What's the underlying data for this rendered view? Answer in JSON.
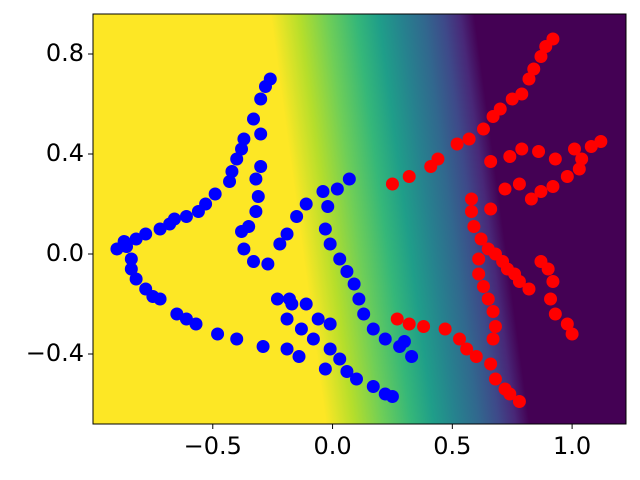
{
  "chart_data": {
    "type": "scatter",
    "xlim": [
      -1.0,
      1.225
    ],
    "ylim": [
      -0.68,
      0.96
    ],
    "xticks": [
      {
        "value": -0.5,
        "label": "−0.5"
      },
      {
        "value": 0.0,
        "label": "0.0"
      },
      0.5,
      {
        "value": 1.0,
        "label": "1.0"
      }
    ],
    "yticks": [
      {
        "value": -0.4,
        "label": "−0.4"
      },
      {
        "value": 0.0,
        "label": "0.0"
      },
      0.4,
      0.8
    ],
    "series": [
      {
        "color": "#0000ff",
        "x": [
          -0.26,
          -0.28,
          -0.3,
          -0.33,
          -0.3,
          -0.37,
          -0.38,
          -0.4,
          -0.42,
          -0.43,
          -0.49,
          -0.53,
          -0.56,
          -0.61,
          -0.66,
          -0.68,
          -0.72,
          -0.78,
          -0.82,
          -0.87,
          -0.9,
          -0.86,
          -0.84,
          -0.84,
          -0.82,
          -0.78,
          -0.75,
          -0.72,
          -0.65,
          -0.61,
          -0.57,
          -0.48,
          -0.4,
          -0.29,
          -0.35,
          -0.32,
          -0.31,
          -0.32,
          -0.3,
          -0.38,
          -0.37,
          -0.33,
          -0.27,
          -0.22,
          -0.19,
          -0.15,
          -0.11,
          -0.04,
          0.02,
          0.07,
          -0.02,
          -0.03,
          -0.01,
          0.03,
          0.06,
          0.09,
          0.11,
          0.13,
          0.17,
          0.22,
          0.28,
          0.33,
          0.3,
          -0.23,
          -0.17,
          -0.19,
          -0.13,
          -0.06,
          -0.01,
          -0.08,
          -0.01,
          0.03,
          0.06,
          0.1,
          0.17,
          0.22,
          0.25,
          -0.19,
          -0.14,
          -0.03,
          -0.18,
          -0.11
        ],
        "values": [
          0.7,
          0.67,
          0.62,
          0.54,
          0.48,
          0.46,
          0.42,
          0.38,
          0.33,
          0.29,
          0.24,
          0.2,
          0.17,
          0.15,
          0.14,
          0.12,
          0.1,
          0.08,
          0.06,
          0.05,
          0.02,
          0.03,
          -0.02,
          -0.06,
          -0.1,
          -0.14,
          -0.17,
          -0.18,
          -0.24,
          -0.26,
          -0.28,
          -0.32,
          -0.34,
          -0.37,
          0.11,
          0.17,
          0.23,
          0.3,
          0.35,
          0.09,
          0.02,
          -0.03,
          -0.04,
          0.04,
          0.08,
          0.15,
          0.2,
          0.25,
          0.26,
          0.3,
          0.19,
          0.1,
          0.04,
          -0.02,
          -0.07,
          -0.12,
          -0.18,
          -0.24,
          -0.3,
          -0.34,
          -0.37,
          -0.41,
          -0.35,
          -0.18,
          -0.2,
          -0.26,
          -0.3,
          -0.26,
          -0.28,
          -0.34,
          -0.38,
          -0.42,
          -0.47,
          -0.5,
          -0.53,
          -0.56,
          -0.57,
          -0.38,
          -0.41,
          -0.46,
          -0.18,
          -0.2
        ]
      },
      {
        "color": "#ff0000",
        "x": [
          0.92,
          0.89,
          0.87,
          0.84,
          0.82,
          0.79,
          0.75,
          0.7,
          0.67,
          0.63,
          0.57,
          0.52,
          0.25,
          0.32,
          0.41,
          0.44,
          0.66,
          0.74,
          0.79,
          0.86,
          0.93,
          1.01,
          1.08,
          1.12,
          1.04,
          1.03,
          0.98,
          0.92,
          0.87,
          0.83,
          0.78,
          0.72,
          0.66,
          0.58,
          0.58,
          0.59,
          0.62,
          0.65,
          0.68,
          0.71,
          0.73,
          0.76,
          0.78,
          0.82,
          0.91,
          0.93,
          0.98,
          1.0,
          0.87,
          0.9,
          0.92,
          0.61,
          0.61,
          0.63,
          0.65,
          0.67,
          0.68,
          0.67,
          0.32,
          0.38,
          0.47,
          0.53,
          0.56,
          0.6,
          0.66,
          0.68,
          0.72,
          0.74,
          0.78,
          0.27
        ],
        "values": [
          0.86,
          0.83,
          0.79,
          0.74,
          0.7,
          0.64,
          0.62,
          0.58,
          0.55,
          0.5,
          0.46,
          0.44,
          0.28,
          0.31,
          0.35,
          0.38,
          0.37,
          0.39,
          0.42,
          0.41,
          0.38,
          0.42,
          0.43,
          0.45,
          0.38,
          0.34,
          0.31,
          0.27,
          0.25,
          0.22,
          0.28,
          0.26,
          0.18,
          0.22,
          0.17,
          0.11,
          0.06,
          0.02,
          0.0,
          -0.03,
          -0.06,
          -0.08,
          -0.11,
          -0.14,
          -0.18,
          -0.24,
          -0.28,
          -0.32,
          -0.03,
          -0.06,
          -0.11,
          -0.02,
          -0.08,
          -0.13,
          -0.18,
          -0.23,
          -0.29,
          -0.34,
          -0.28,
          -0.29,
          -0.3,
          -0.34,
          -0.38,
          -0.41,
          -0.44,
          -0.5,
          -0.54,
          -0.56,
          -0.59,
          -0.26
        ]
      }
    ]
  }
}
